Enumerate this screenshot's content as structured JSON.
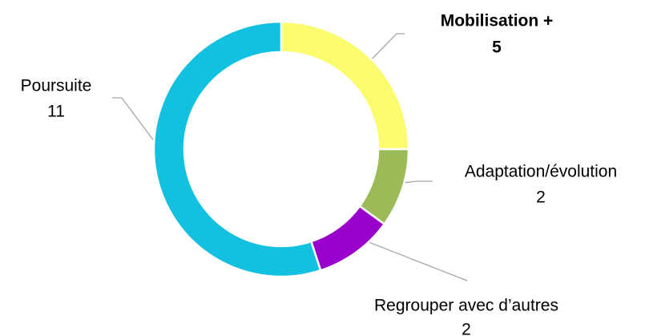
{
  "chart_data": {
    "type": "donut",
    "categories": [
      "Mobilisation +",
      "Adaptation/évolution",
      "Regrouper avec d’autres",
      "Poursuite"
    ],
    "values": [
      5,
      2,
      2,
      11
    ],
    "colors": [
      "#fbfb6e",
      "#9bbb59",
      "#9900cc",
      "#12c0e0"
    ]
  }
}
